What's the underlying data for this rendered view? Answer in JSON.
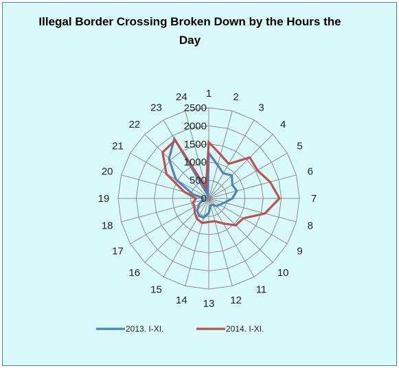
{
  "chart_data": {
    "type": "radar",
    "title": "Illegal Border Crossing Broken Down by the Hours the Day",
    "categories": [
      "1",
      "2",
      "3",
      "4",
      "5",
      "6",
      "7",
      "8",
      "9",
      "10",
      "11",
      "12",
      "13",
      "14",
      "15",
      "16",
      "17",
      "18",
      "19",
      "20",
      "21",
      "22",
      "23",
      "24"
    ],
    "r_ticks": [
      0,
      500,
      1000,
      1500,
      2000,
      2500
    ],
    "r_tick_labels": [
      "0",
      "500",
      "1000",
      "1500",
      "2000",
      "2500"
    ],
    "rlim": [
      0,
      2500
    ],
    "grid": true,
    "legend_position": "bottom",
    "series": [
      {
        "name": "2013. I-XI.",
        "color": "#4f81bd",
        "values": [
          1250,
          950,
          800,
          900,
          750,
          800,
          650,
          450,
          350,
          300,
          200,
          200,
          400,
          550,
          550,
          450,
          300,
          150,
          150,
          450,
          1050,
          1550,
          1900,
          100
        ]
      },
      {
        "name": "2014. I-XI.",
        "color": "#c0504d",
        "values": [
          1550,
          1250,
          1100,
          1600,
          1550,
          1750,
          1950,
          1600,
          1100,
          1050,
          800,
          650,
          650,
          700,
          650,
          550,
          450,
          450,
          350,
          700,
          1350,
          1800,
          1850,
          300
        ]
      }
    ]
  }
}
